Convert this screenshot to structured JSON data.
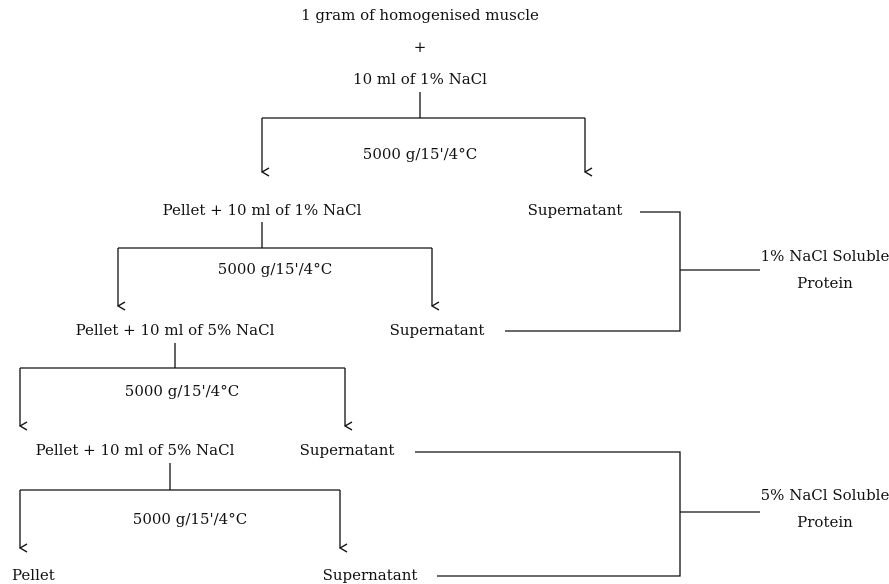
{
  "start": {
    "sample": "1 gram of homogenised muscle",
    "plus": "+",
    "solvent": "10 ml of 1% NaCl"
  },
  "steps": [
    {
      "condition": "5000 g/15'/4°C",
      "pellet": "Pellet + 10 ml of 1% NaCl",
      "supernatant": "Supernatant"
    },
    {
      "condition": "5000 g/15'/4°C",
      "pellet": "Pellet + 10 ml of 5% NaCl",
      "supernatant": "Supernatant"
    },
    {
      "condition": "5000 g/15'/4°C",
      "pellet": "Pellet + 10 ml of 5% NaCl",
      "supernatant": "Supernatant"
    },
    {
      "condition": "5000 g/15'/4°C",
      "pellet": "Pellet",
      "supernatant": "Supernatant"
    }
  ],
  "fractions": [
    {
      "line1": "1% NaCl Soluble",
      "line2": "Protein"
    },
    {
      "line1": "5% NaCl Soluble",
      "line2": "Protein"
    }
  ]
}
